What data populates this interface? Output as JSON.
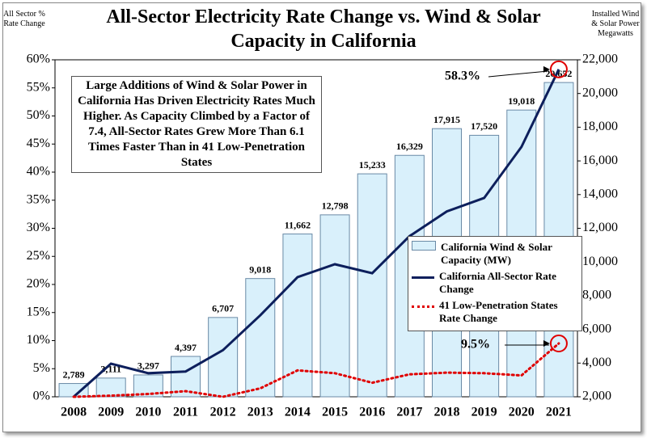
{
  "chart_data": {
    "type": "bar-line",
    "title": "All-Sector Electricity Rate Change vs. Wind & Solar Capacity in California",
    "y_axis_label": "All Sector % Rate Change",
    "y2_axis_label": "Installed Wind & Solar Power Megawatts",
    "annotation": "Large Additions of Wind & Solar Power in California Has Driven Electricity Rates Much Higher. As Capacity Climbed by a Factor of 7.4, All-Sector Rates Grew More Than 6.1 Times Faster Than in 41 Low-Penetration States",
    "callouts": [
      "58.3%",
      "9.5%"
    ],
    "categories": [
      "2008",
      "2009",
      "2010",
      "2011",
      "2012",
      "2013",
      "2014",
      "2015",
      "2016",
      "2017",
      "2018",
      "2019",
      "2020",
      "2021"
    ],
    "series": [
      {
        "name": "California Wind & Solar Capacity (MW)",
        "type": "bar",
        "axis": "y2",
        "color": "#d9f0fb",
        "values": [
          2789,
          3111,
          3297,
          4397,
          6707,
          9018,
          11662,
          12798,
          15233,
          16329,
          17915,
          17520,
          19018,
          20652
        ],
        "value_labels": [
          "2,789",
          "3,111",
          "3,297",
          "4,397",
          "6,707",
          "9,018",
          "11,662",
          "12,798",
          "15,233",
          "16,329",
          "17,915",
          "17,520",
          "19,018",
          "20,652"
        ]
      },
      {
        "name": "California All-Sector Rate Change",
        "type": "line",
        "color": "#0d1f5c",
        "values": [
          0,
          5.9,
          4.2,
          4.5,
          8.3,
          14.5,
          21.3,
          23.6,
          22.0,
          28.6,
          33.0,
          35.4,
          44.5,
          58.3
        ]
      },
      {
        "name": "41 Low-Penetration States Rate Change",
        "type": "dotted",
        "color": "#e00000",
        "values": [
          0,
          0.2,
          0.5,
          1.0,
          0,
          1.5,
          4.7,
          4.2,
          2.5,
          4.0,
          4.3,
          4.2,
          3.8,
          9.5
        ]
      }
    ],
    "ylim": [
      0,
      60
    ],
    "yticks": [
      {
        "value": 0,
        "label": "0%"
      },
      {
        "value": 5,
        "label": "5%"
      },
      {
        "value": 10,
        "label": "10%"
      },
      {
        "value": 15,
        "label": "15%"
      },
      {
        "value": 20,
        "label": "20%"
      },
      {
        "value": 25,
        "label": "25%"
      },
      {
        "value": 30,
        "label": "30%"
      },
      {
        "value": 35,
        "label": "35%"
      },
      {
        "value": 40,
        "label": "40%"
      },
      {
        "value": 45,
        "label": "45%"
      },
      {
        "value": 50,
        "label": "50%"
      },
      {
        "value": 55,
        "label": "55%"
      },
      {
        "value": 60,
        "label": "60%"
      }
    ],
    "y2lim": [
      2000,
      22000
    ],
    "y2ticks": [
      {
        "value": 2000,
        "label": "2,000"
      },
      {
        "value": 4000,
        "label": "4,000"
      },
      {
        "value": 6000,
        "label": "6,000"
      },
      {
        "value": 8000,
        "label": "8,000"
      },
      {
        "value": 10000,
        "label": "10,000"
      },
      {
        "value": 12000,
        "label": "12,000"
      },
      {
        "value": 14000,
        "label": "14,000"
      },
      {
        "value": 16000,
        "label": "16,000"
      },
      {
        "value": 18000,
        "label": "18,000"
      },
      {
        "value": 20000,
        "label": "20,000"
      },
      {
        "value": 22000,
        "label": "22,000"
      }
    ],
    "grid": false,
    "legend": "lower right"
  }
}
